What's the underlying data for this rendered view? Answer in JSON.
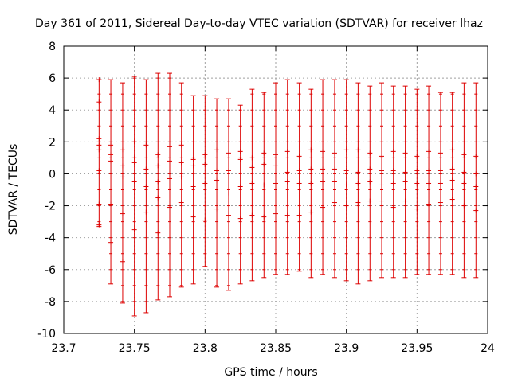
{
  "chart_data": {
    "type": "scatter",
    "title": "Day 361 of 2011, Sidereal Day-to-day VTEC variation (SDTVAR) for receiver lhaz",
    "xlabel": "GPS time / hours",
    "ylabel": "SDTVAR / TECUs",
    "xlim": [
      23.7,
      24.0
    ],
    "ylim": [
      -10,
      8
    ],
    "grid": true,
    "xticks": [
      23.7,
      23.75,
      23.8,
      23.85,
      23.9,
      23.95,
      24.0
    ],
    "xtick_labels": [
      "23.7",
      "23.75",
      "23.8",
      "23.85",
      "23.9",
      "23.95",
      "24"
    ],
    "yticks": [
      -10,
      -8,
      -6,
      -4,
      -2,
      0,
      2,
      4,
      6,
      8
    ],
    "ytick_labels": [
      "-10",
      "-8",
      "-6",
      "-4",
      "-2",
      "0",
      "2",
      "4",
      "6",
      "8"
    ],
    "color": "#dd0000",
    "series": [
      {
        "name": "SDTVAR",
        "x": [
          23.725,
          23.7333,
          23.7417,
          23.75,
          23.7583,
          23.7667,
          23.775,
          23.7833,
          23.7917,
          23.8,
          23.8083,
          23.8167,
          23.825,
          23.8333,
          23.8417,
          23.85,
          23.8583,
          23.8667,
          23.875,
          23.8833,
          23.8917,
          23.9,
          23.9083,
          23.9167,
          23.925,
          23.9333,
          23.9417,
          23.95,
          23.9583,
          23.9667,
          23.975,
          23.9833,
          23.9917
        ],
        "errbars": [
          [
            -3.3,
            5.9
          ],
          [
            -6.9,
            5.9
          ],
          [
            -8.1,
            5.7
          ],
          [
            -8.9,
            6.1
          ],
          [
            -8.7,
            5.9
          ],
          [
            -7.9,
            6.3
          ],
          [
            -7.7,
            6.3
          ],
          [
            -7.1,
            5.7
          ],
          [
            -6.9,
            4.9
          ],
          [
            -5.8,
            4.9
          ],
          [
            -7.1,
            4.7
          ],
          [
            -7.3,
            4.7
          ],
          [
            -6.9,
            4.3
          ],
          [
            -6.7,
            5.3
          ],
          [
            -6.5,
            5.1
          ],
          [
            -6.3,
            5.7
          ],
          [
            -6.3,
            5.9
          ],
          [
            -6.1,
            5.7
          ],
          [
            -6.5,
            5.3
          ],
          [
            -6.3,
            5.9
          ],
          [
            -6.5,
            5.9
          ],
          [
            -6.7,
            5.9
          ],
          [
            -6.9,
            5.7
          ],
          [
            -6.7,
            5.5
          ],
          [
            -6.5,
            5.7
          ],
          [
            -6.5,
            5.5
          ],
          [
            -6.5,
            5.5
          ],
          [
            -6.3,
            5.3
          ],
          [
            -6.3,
            5.5
          ],
          [
            -6.3,
            5.1
          ],
          [
            -6.3,
            5.1
          ],
          [
            -6.5,
            5.7
          ],
          [
            -6.5,
            5.7
          ]
        ],
        "centers": [
          [
            5.9,
            4.5,
            2.2,
            1.8,
            1.5,
            0.2,
            -1.9,
            -3.2
          ],
          [
            1.8,
            1.2,
            0.8,
            -1.9,
            -4.3
          ],
          [
            1.5,
            0.5,
            -0.2,
            -2.5,
            -5.5
          ],
          [
            2.0,
            1.0,
            0.7,
            -0.5,
            -3.5
          ],
          [
            1.8,
            0.3,
            -0.8,
            -2.4
          ],
          [
            1.2,
            0.5,
            -0.5,
            -1.5,
            -3.7
          ],
          [
            1.7,
            0.8,
            -0.3,
            -2.1
          ],
          [
            1.8,
            0.7,
            -0.2,
            -1.8
          ],
          [
            0.9,
            0.5,
            -0.8,
            -2.7
          ],
          [
            1.2,
            0.6,
            -0.6,
            -2.9
          ],
          [
            1.5,
            0.2,
            -0.4,
            -2.2
          ],
          [
            1.3,
            0.2,
            -1.2,
            -2.6
          ],
          [
            1.4,
            0.9,
            -0.8,
            -2.8
          ],
          [
            1.0,
            0.4,
            -0.6,
            -2.6
          ],
          [
            1.3,
            0.6,
            -0.7,
            -2.7
          ],
          [
            1.2,
            0.5,
            -0.6,
            -2.5
          ],
          [
            1.4,
            0.1,
            -0.5,
            -2.6
          ],
          [
            1.1,
            0.2,
            -0.6,
            -2.6
          ],
          [
            1.5,
            0.3,
            -0.6,
            -2.4
          ],
          [
            1.4,
            0.3,
            -0.5,
            -2.1
          ],
          [
            1.3,
            0.3,
            -0.5,
            -1.8
          ],
          [
            1.5,
            0.2,
            -0.7,
            -2.0
          ],
          [
            1.5,
            0.1,
            -0.6,
            -1.8
          ],
          [
            1.3,
            0.3,
            -0.5,
            -1.7
          ],
          [
            1.1,
            0.2,
            -0.7,
            -1.7
          ],
          [
            1.4,
            0.2,
            -0.6,
            -2.1
          ],
          [
            1.3,
            0.1,
            -0.5,
            -1.7
          ],
          [
            1.1,
            0.2,
            -0.6,
            -2.2
          ],
          [
            1.4,
            0.2,
            -0.6,
            -1.9
          ],
          [
            1.3,
            0.2,
            -0.6,
            -1.8
          ],
          [
            1.5,
            0.3,
            -0.4,
            -1.6
          ],
          [
            1.2,
            0.1,
            -0.6,
            -2.0
          ],
          [
            1.1,
            0.0,
            -0.8,
            -2.3
          ]
        ]
      }
    ]
  }
}
